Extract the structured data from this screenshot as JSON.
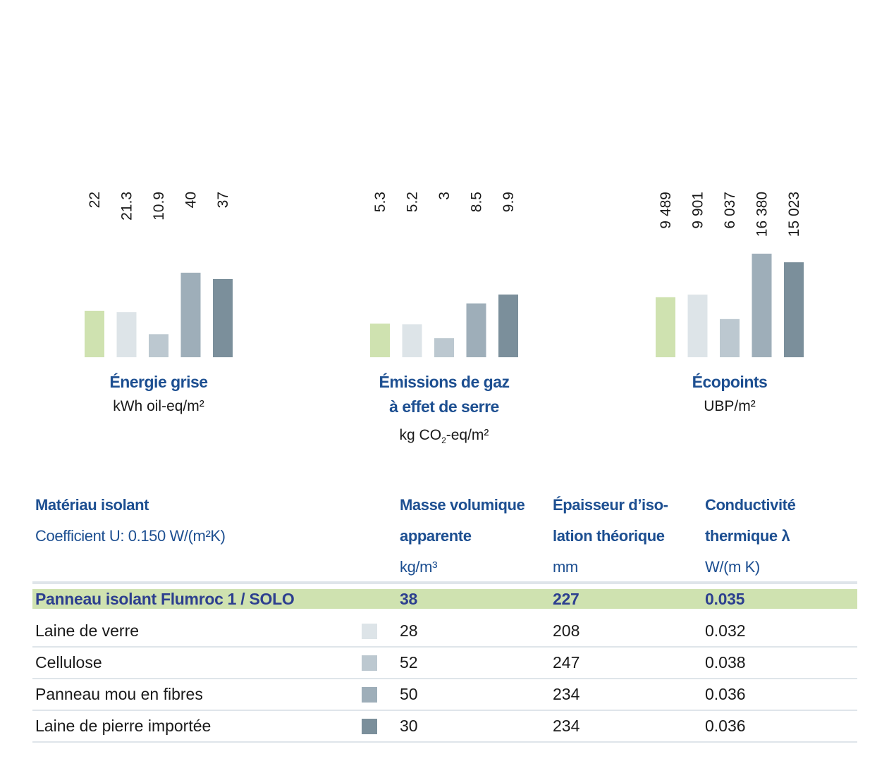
{
  "colors": {
    "flumroc": "#cfe2b0",
    "laine_de_verre": "#dde4e8",
    "cellulose": "#bcc8d0",
    "panneau_mou": "#9eaeb9",
    "laine_de_pierre": "#7b8f9b",
    "title_blue": "#1d4f91",
    "highlight_text": "#2d3f8f"
  },
  "chart_data": [
    {
      "type": "bar",
      "title": "Énergie grise",
      "unit": "kWh oil-eq/m²",
      "categories": [
        "Panneau isolant Flumroc 1 / SOLO",
        "Laine de verre",
        "Cellulose",
        "Panneau mou en fibres",
        "Laine de pierre importée"
      ],
      "values": [
        22,
        21.3,
        10.9,
        40,
        37
      ],
      "labels": [
        "22",
        "21.3",
        "10.9",
        "40",
        "37"
      ],
      "ylim": [
        0,
        40
      ]
    },
    {
      "type": "bar",
      "title_line1": "Émissions de gaz",
      "title_line2": "à effet de serre",
      "unit_prefix": "kg CO",
      "unit_sub": "2",
      "unit_suffix": "-eq/m²",
      "categories": [
        "Panneau isolant Flumroc 1 / SOLO",
        "Laine de verre",
        "Cellulose",
        "Panneau mou en fibres",
        "Laine de pierre importée"
      ],
      "values": [
        5.3,
        5.2,
        3,
        8.5,
        9.9
      ],
      "labels": [
        "5.3",
        "5.2",
        "3",
        "8.5",
        "9.9"
      ],
      "ylim": [
        0,
        9.9
      ]
    },
    {
      "type": "bar",
      "title": "Écopoints",
      "unit": "UBP/m²",
      "categories": [
        "Panneau isolant Flumroc 1 / SOLO",
        "Laine de verre",
        "Cellulose",
        "Panneau mou en fibres",
        "Laine de pierre importée"
      ],
      "values": [
        9489,
        9901,
        6037,
        16380,
        15023
      ],
      "labels": [
        "9 489",
        "9 901",
        "6 037",
        "16 380",
        "15 023"
      ],
      "ylim": [
        0,
        16380
      ]
    }
  ],
  "table": {
    "headers": {
      "material_title": "Matériau isolant",
      "material_sub": "Coefficient U: 0.150 W/(m²K)",
      "mass_line1": "Masse volumique",
      "mass_line2": "apparente",
      "mass_unit": "kg/m³",
      "thick_line1": "Épaisseur d’iso-",
      "thick_line2": "lation théorique",
      "thick_unit": "mm",
      "lambda_line1": "Conductivité",
      "lambda_line2": "thermique λ",
      "lambda_unit": "W/(m K)"
    },
    "rows": [
      {
        "name": "Panneau isolant Flumroc 1 / SOLO",
        "mass": "38",
        "thickness": "227",
        "lambda": "0.035"
      },
      {
        "name": "Laine de verre",
        "mass": "28",
        "thickness": "208",
        "lambda": "0.032"
      },
      {
        "name": "Cellulose",
        "mass": "52",
        "thickness": "247",
        "lambda": "0.038"
      },
      {
        "name": "Panneau mou en fibres",
        "mass": "50",
        "thickness": "234",
        "lambda": "0.036"
      },
      {
        "name": "Laine de pierre importée",
        "mass": "30",
        "thickness": "234",
        "lambda": "0.036"
      }
    ]
  }
}
